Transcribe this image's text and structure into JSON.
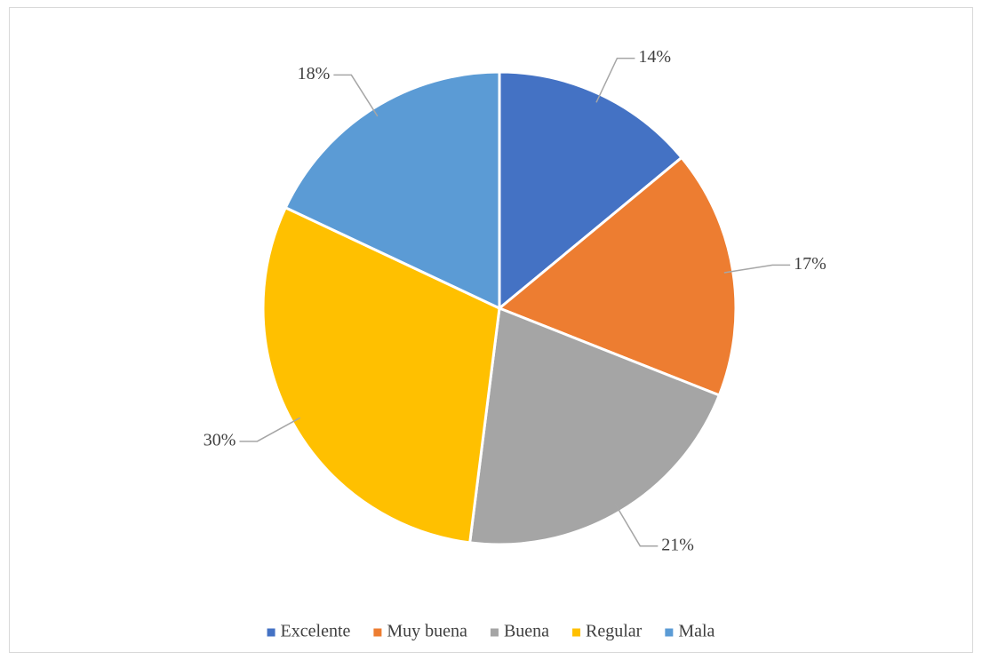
{
  "chart_data": {
    "type": "pie",
    "categories": [
      "Excelente",
      "Muy buena",
      "Buena",
      "Regular",
      "Mala"
    ],
    "values": [
      14,
      17,
      21,
      30,
      18
    ],
    "value_labels": [
      "14%",
      "17%",
      "21%",
      "30%",
      "18%"
    ],
    "colors": [
      "#4472c4",
      "#ed7d31",
      "#a5a5a5",
      "#ffc000",
      "#5b9bd5"
    ],
    "legend": "bottom"
  }
}
